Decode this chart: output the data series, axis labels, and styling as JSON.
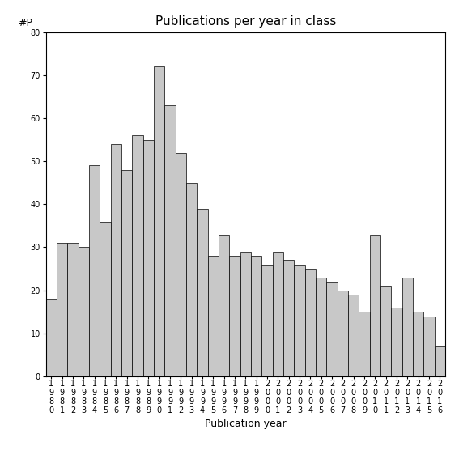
{
  "title": "Publications per year in class",
  "xlabel": "Publication year",
  "ylabel": "#P",
  "years": [
    1980,
    1981,
    1982,
    1983,
    1984,
    1985,
    1986,
    1987,
    1988,
    1989,
    1990,
    1991,
    1992,
    1993,
    1994,
    1995,
    1996,
    1997,
    1998,
    1999,
    2000,
    2001,
    2002,
    2003,
    2004,
    2005,
    2006,
    2007,
    2008,
    2009,
    2010,
    2011,
    2012,
    2013,
    2014,
    2015,
    2016
  ],
  "values": [
    18,
    31,
    31,
    30,
    49,
    36,
    54,
    48,
    56,
    55,
    72,
    63,
    52,
    45,
    39,
    28,
    33,
    28,
    29,
    28,
    26,
    29,
    27,
    26,
    25,
    23,
    22,
    20,
    19,
    15,
    33,
    21,
    16,
    23,
    15,
    14,
    7
  ],
  "bar_color": "#c8c8c8",
  "bar_edge_color": "#000000",
  "ylim": [
    0,
    80
  ],
  "yticks": [
    0,
    10,
    20,
    30,
    40,
    50,
    60,
    70,
    80
  ],
  "bg_color": "#ffffff",
  "title_fontsize": 11,
  "axis_label_fontsize": 9,
  "tick_fontsize": 7
}
